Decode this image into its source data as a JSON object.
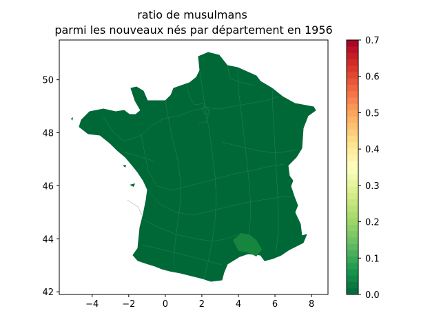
{
  "figure": {
    "title_line1": "ratio de musulmans",
    "title_line2": "parmi les nouveaux nés par département en 1956"
  },
  "chart_data": {
    "type": "heatmap",
    "subtype": "choropleth map",
    "title": "ratio de musulmans parmi les nouveaux nés par département en 1956",
    "xlabel": "",
    "ylabel": "",
    "xlim": [
      -5.8,
      8.9
    ],
    "ylim": [
      41.9,
      51.5
    ],
    "x_ticks": [
      "−4",
      "−2",
      "0",
      "2",
      "4",
      "6",
      "8"
    ],
    "x_tick_values": [
      -4,
      -2,
      0,
      2,
      4,
      6,
      8
    ],
    "y_ticks": [
      "42",
      "44",
      "46",
      "48",
      "50"
    ],
    "y_tick_values": [
      42,
      44,
      46,
      48,
      50
    ],
    "grid": false,
    "region_default_value": 0.0,
    "region_highlight_value": 0.03,
    "colorbar": {
      "min": 0.0,
      "max": 0.7,
      "colormap": "RdYlGn_r",
      "levels": 40,
      "tick_labels": [
        "0.0",
        "0.1",
        "0.2",
        "0.3",
        "0.4",
        "0.5",
        "0.6",
        "0.7"
      ],
      "tick_values": [
        0.0,
        0.1,
        0.2,
        0.3,
        0.4,
        0.5,
        0.6,
        0.7
      ]
    }
  },
  "colors": {
    "map_fill": "#006837",
    "map_highlight": "#16853d",
    "department_border": "#3a8a5c"
  }
}
